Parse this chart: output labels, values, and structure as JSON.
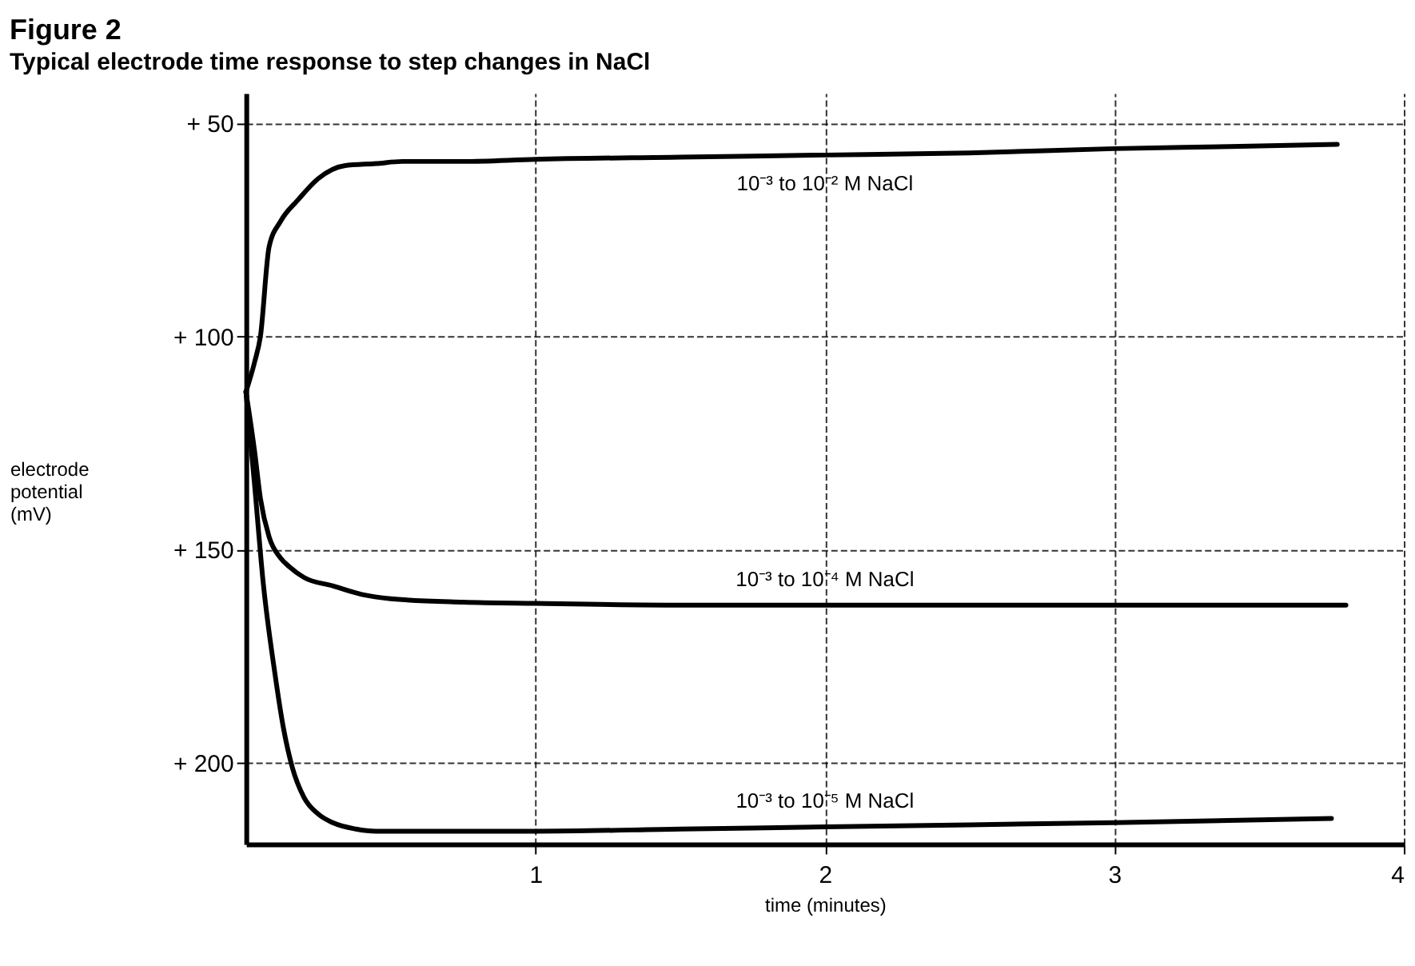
{
  "chart_data": {
    "type": "line",
    "title": "Figure 2",
    "subtitle": "Typical electrode time response to step changes in NaCl",
    "xlabel": "time (minutes)",
    "ylabel": "electrode\npotential\n(mV)",
    "xlim": [
      0,
      4
    ],
    "xticks": [
      1,
      2,
      3,
      4
    ],
    "ylim": [
      219,
      43
    ],
    "yticks": [
      {
        "value": 50,
        "label": "+ 50"
      },
      {
        "value": 100,
        "label": "+ 100"
      },
      {
        "value": 150,
        "label": "+ 150"
      },
      {
        "value": 200,
        "label": "+ 200"
      }
    ],
    "grid": true,
    "legend": false,
    "marker": "none",
    "line_style": "solid",
    "series": [
      {
        "name": "10⁻³ to 10⁻² M NaCl",
        "color": "#000000",
        "x": [
          0,
          0.03,
          0.05,
          0.08,
          0.12,
          0.18,
          0.25,
          0.34,
          0.45,
          0.54,
          0.75,
          1,
          1.5,
          2,
          2.5,
          3,
          3.4,
          3.77
        ],
        "values": [
          113,
          106,
          100,
          79,
          73,
          68,
          63,
          60,
          59.5,
          59,
          59,
          58.5,
          58,
          57.5,
          57,
          56,
          55.5,
          55
        ]
      },
      {
        "name": "10⁻³ to 10⁻⁴ M NaCl",
        "color": "#000000",
        "x": [
          0,
          0.03,
          0.05,
          0.08,
          0.12,
          0.15,
          0.2,
          0.3,
          0.4,
          0.5,
          0.75,
          1,
          1.5,
          2,
          3,
          3.8
        ],
        "values": [
          113,
          127,
          138,
          147,
          152,
          154,
          156.5,
          158.5,
          160.5,
          161.5,
          162.3,
          162.6,
          163,
          163,
          163,
          163
        ]
      },
      {
        "name": "10⁻³ to 10⁻⁵ M NaCl",
        "color": "#000000",
        "x": [
          0,
          0.03,
          0.06,
          0.1,
          0.13,
          0.16,
          0.2,
          0.25,
          0.3,
          0.38,
          0.45,
          0.7,
          1,
          1.5,
          2,
          2.5,
          3,
          3.75
        ],
        "values": [
          113,
          135,
          158,
          179,
          192,
          201,
          208,
          212,
          214,
          215.5,
          216,
          216,
          216,
          215.5,
          215,
          214.5,
          214,
          213
        ]
      }
    ]
  }
}
